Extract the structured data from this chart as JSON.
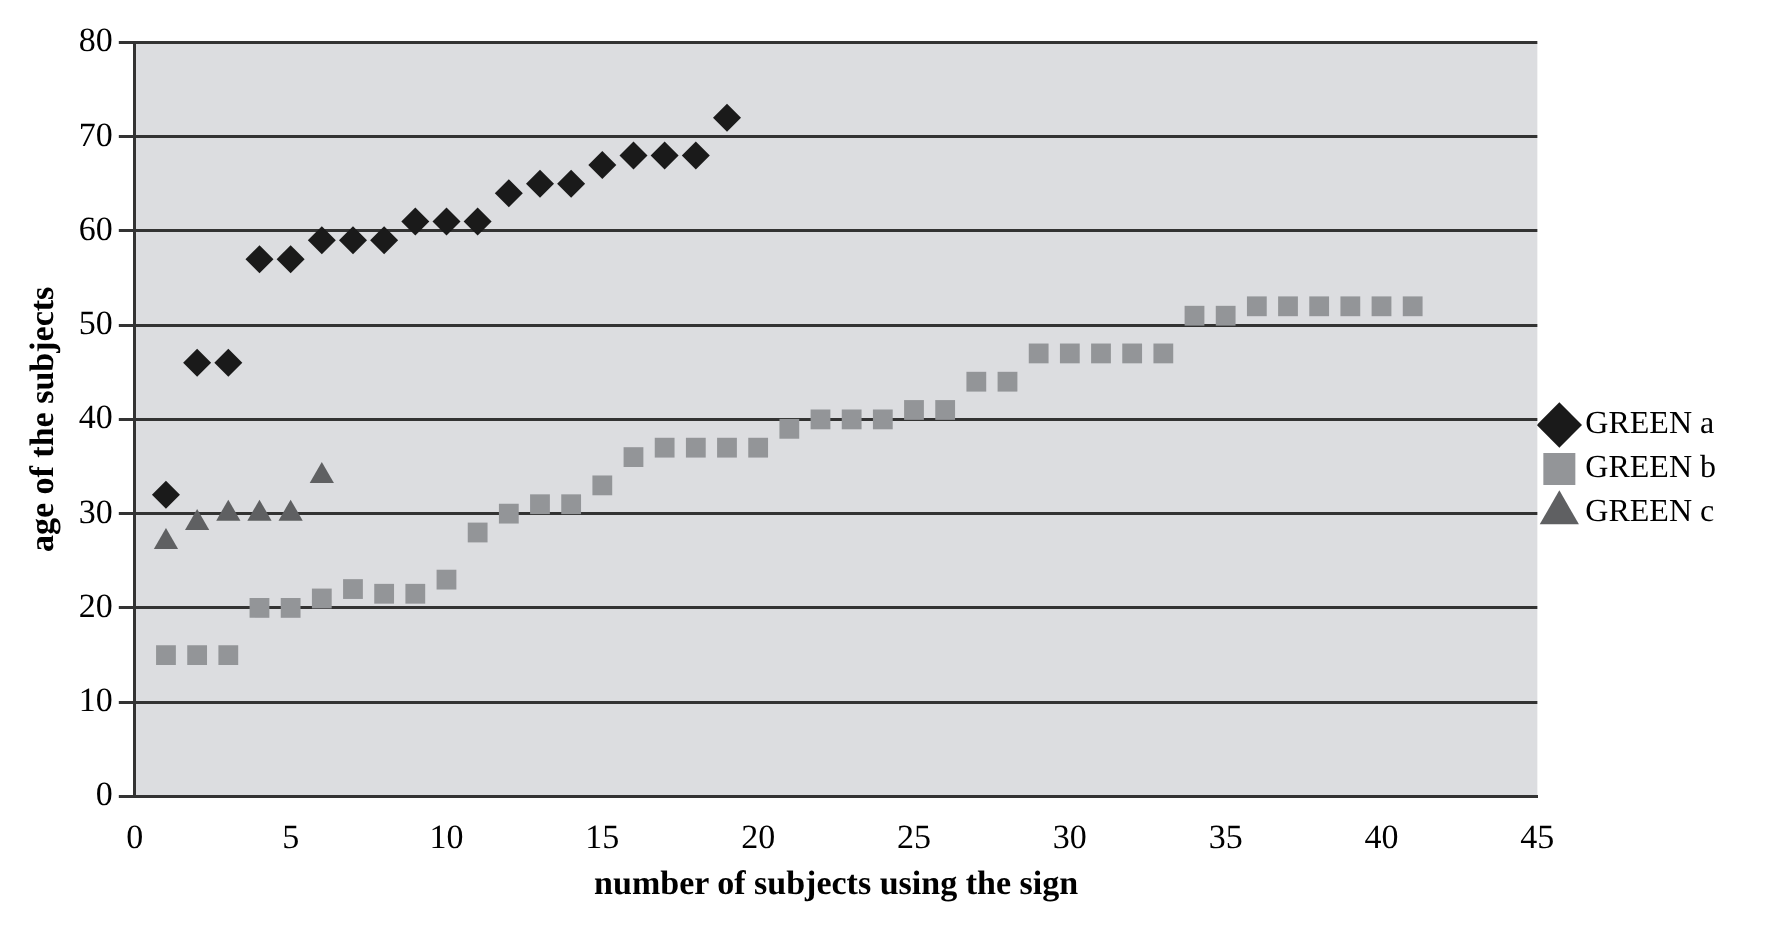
{
  "chart_data": {
    "type": "scatter",
    "xlabel": "number of subjects using the sign",
    "ylabel": "age of the subjects",
    "xlim": [
      0,
      45
    ],
    "xticks": [
      0,
      5,
      10,
      15,
      20,
      25,
      30,
      35,
      40,
      45
    ],
    "ylim": [
      0,
      80
    ],
    "yticks": [
      0,
      10,
      20,
      30,
      40,
      50,
      60,
      70,
      80
    ],
    "grid": "y",
    "legend": "right",
    "series": [
      {
        "name": "GREEN a",
        "color": "#1a1a1a",
        "marker": "diamond",
        "x": [
          1,
          2,
          3,
          4,
          5,
          6,
          7,
          8,
          9,
          10,
          11,
          12,
          13,
          14,
          15,
          16,
          17,
          18,
          19
        ],
        "values": [
          32,
          46,
          46,
          57,
          57,
          59,
          59,
          59,
          61,
          61,
          61,
          64,
          65,
          65,
          67,
          68,
          68,
          68,
          72
        ]
      },
      {
        "name": "GREEN b",
        "color": "#939598",
        "marker": "square",
        "x": [
          1,
          2,
          3,
          4,
          5,
          6,
          7,
          8,
          9,
          10,
          11,
          12,
          13,
          14,
          15,
          16,
          17,
          18,
          19,
          20,
          21,
          22,
          23,
          24,
          25,
          26,
          27,
          28,
          29,
          30,
          31,
          32,
          33,
          34,
          35,
          36,
          37,
          38,
          39,
          40,
          41
        ],
        "values": [
          15,
          15,
          15,
          20,
          20,
          21,
          22,
          21.5,
          21.5,
          23,
          28,
          30,
          31,
          31,
          33,
          36,
          37,
          37,
          37,
          37,
          39,
          40,
          40,
          40,
          41,
          41,
          44,
          44,
          47,
          47,
          47,
          47,
          47,
          51,
          51,
          52,
          52,
          52,
          52,
          52,
          52
        ]
      },
      {
        "name": "GREEN c",
        "color": "#5f6062",
        "marker": "triangle",
        "x": [
          1,
          2,
          3,
          4,
          5,
          6
        ],
        "values": [
          27,
          29,
          30,
          30,
          30,
          34
        ]
      }
    ]
  }
}
